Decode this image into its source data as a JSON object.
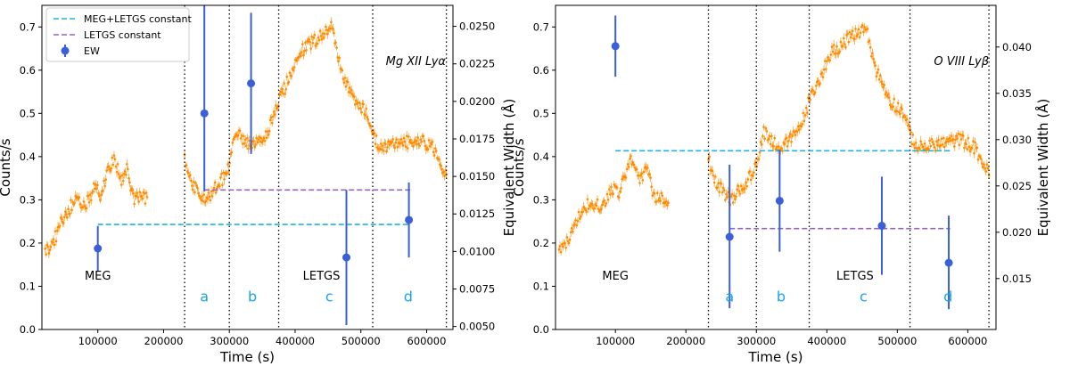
{
  "colors": {
    "lightcurve": "#ff8c00",
    "ew": "#3a5fd6",
    "combined_const": "#1cb5e0",
    "letgs_const": "#9467bd",
    "segment_label": "#1aa3e8"
  },
  "chart_data": [
    {
      "type": "scatter",
      "title": "",
      "annotation": "Mg XII Lyα",
      "xlabel": "Time (s)",
      "ylabel": "Counts/s",
      "y2label": "Equivalent Width (Å)",
      "xlim": [
        15000,
        640000
      ],
      "ylim": [
        0,
        0.75
      ],
      "y2lim": [
        0.0048,
        0.0264
      ],
      "xticks": [
        100000,
        200000,
        300000,
        400000,
        500000,
        600000
      ],
      "xtick_labels": [
        "100000",
        "200000",
        "300000",
        "400000",
        "500000",
        "600000"
      ],
      "yticks": [
        0.0,
        0.1,
        0.2,
        0.3,
        0.4,
        0.5,
        0.6,
        0.7
      ],
      "ytick_labels": [
        "0.0",
        "0.1",
        "0.2",
        "0.3",
        "0.4",
        "0.5",
        "0.6",
        "0.7"
      ],
      "y2ticks": [
        0.005,
        0.0075,
        0.01,
        0.0125,
        0.015,
        0.0175,
        0.02,
        0.0225,
        0.025
      ],
      "y2tick_labels": [
        "0.0050",
        "0.0075",
        "0.0100",
        "0.0125",
        "0.0150",
        "0.0175",
        "0.0200",
        "0.0225",
        "0.0250"
      ],
      "grid": false,
      "legend_position": "top-left",
      "legend": [
        "MEG+LETGS constant",
        "LETGS constant",
        "EW"
      ],
      "segment_boundaries": [
        232000,
        300000,
        375000,
        518000,
        630000
      ],
      "segment_labels": [
        {
          "text": "a",
          "x": 262000,
          "y": 0.065
        },
        {
          "text": "b",
          "x": 335000,
          "y": 0.065
        },
        {
          "text": "c",
          "x": 452000,
          "y": 0.065
        },
        {
          "text": "d",
          "x": 572000,
          "y": 0.065
        }
      ],
      "instrument_labels": [
        {
          "text": "MEG",
          "x": 100000,
          "y": 0.115
        },
        {
          "text": "LETGS",
          "x": 440000,
          "y": 0.115
        }
      ],
      "constants": [
        {
          "name": "MEG+LETGS constant",
          "value": 0.0118,
          "x_range": [
            100000,
            575000
          ]
        },
        {
          "name": "LETGS constant",
          "value": 0.0141,
          "x_range": [
            262000,
            575000
          ]
        }
      ],
      "ew_points": [
        {
          "x": 100000,
          "y": 0.0102,
          "err_low": 0.0015,
          "err_high": 0.0015
        },
        {
          "x": 262000,
          "y": 0.0192,
          "err_low": 0.0052,
          "err_high": 0.0072
        },
        {
          "x": 333000,
          "y": 0.0212,
          "err_low": 0.0047,
          "err_high": 0.0047
        },
        {
          "x": 478000,
          "y": 0.0096,
          "err_low": 0.0045,
          "err_high": 0.0045
        },
        {
          "x": 573000,
          "y": 0.0121,
          "err_low": 0.0025,
          "err_high": 0.0025
        }
      ],
      "lightcurve": [
        {
          "segment": "MEG",
          "x_start": 20000,
          "x_end": 175000,
          "knots_x": [
            20000,
            32000,
            48000,
            65000,
            80000,
            95000,
            105000,
            112000,
            125000,
            135000,
            145000,
            155000,
            165000,
            175000
          ],
          "knots_y": [
            0.18,
            0.2,
            0.26,
            0.3,
            0.28,
            0.33,
            0.31,
            0.35,
            0.4,
            0.34,
            0.37,
            0.3,
            0.31,
            0.3
          ]
        },
        {
          "segment": "LETGS",
          "x_start": 232000,
          "x_end": 630000,
          "knots_x": [
            232000,
            240000,
            255000,
            265000,
            280000,
            295000,
            300000,
            310000,
            320000,
            335000,
            350000,
            365000,
            375000,
            385000,
            395000,
            405000,
            455000,
            470000,
            490000,
            510000,
            518000,
            530000,
            560000,
            590000,
            610000,
            630000
          ],
          "knots_y": [
            0.4,
            0.35,
            0.31,
            0.3,
            0.33,
            0.36,
            0.38,
            0.46,
            0.44,
            0.42,
            0.44,
            0.48,
            0.53,
            0.56,
            0.6,
            0.64,
            0.7,
            0.6,
            0.53,
            0.5,
            0.45,
            0.42,
            0.43,
            0.44,
            0.42,
            0.36
          ]
        }
      ]
    },
    {
      "type": "scatter",
      "title": "",
      "annotation": "O VIII Lyβ",
      "xlabel": "Time (s)",
      "ylabel": "Counts/s",
      "y2label": "Equivalent Width (Å)",
      "xlim": [
        15000,
        640000
      ],
      "ylim": [
        0,
        0.75
      ],
      "y2lim": [
        0.0095,
        0.0445
      ],
      "xticks": [
        100000,
        200000,
        300000,
        400000,
        500000,
        600000
      ],
      "xtick_labels": [
        "100000",
        "200000",
        "300000",
        "400000",
        "500000",
        "600000"
      ],
      "yticks": [
        0.0,
        0.1,
        0.2,
        0.3,
        0.4,
        0.5,
        0.6,
        0.7
      ],
      "ytick_labels": [
        "0.0",
        "0.1",
        "0.2",
        "0.3",
        "0.4",
        "0.5",
        "0.6",
        "0.7"
      ],
      "y2ticks": [
        0.015,
        0.02,
        0.025,
        0.03,
        0.035,
        0.04
      ],
      "y2tick_labels": [
        "0.015",
        "0.020",
        "0.025",
        "0.030",
        "0.035",
        "0.040"
      ],
      "grid": false,
      "legend_position": "none",
      "legend": [],
      "segment_boundaries": [
        232000,
        300000,
        375000,
        518000,
        630000
      ],
      "segment_labels": [
        {
          "text": "a",
          "x": 262000,
          "y": 0.065
        },
        {
          "text": "b",
          "x": 335000,
          "y": 0.065
        },
        {
          "text": "c",
          "x": 452000,
          "y": 0.065
        },
        {
          "text": "d",
          "x": 572000,
          "y": 0.065
        }
      ],
      "instrument_labels": [
        {
          "text": "MEG",
          "x": 100000,
          "y": 0.115
        },
        {
          "text": "LETGS",
          "x": 440000,
          "y": 0.115
        }
      ],
      "constants": [
        {
          "name": "MEG+LETGS constant",
          "value": 0.0288,
          "x_range": [
            100000,
            575000
          ]
        },
        {
          "name": "LETGS constant",
          "value": 0.0204,
          "x_range": [
            262000,
            575000
          ]
        }
      ],
      "ew_points": [
        {
          "x": 100000,
          "y": 0.0401,
          "err_low": 0.0033,
          "err_high": 0.0033
        },
        {
          "x": 262000,
          "y": 0.0195,
          "err_low": 0.0077,
          "err_high": 0.0078
        },
        {
          "x": 333000,
          "y": 0.0234,
          "err_low": 0.0055,
          "err_high": 0.0055
        },
        {
          "x": 478000,
          "y": 0.0207,
          "err_low": 0.0053,
          "err_high": 0.0053
        },
        {
          "x": 573000,
          "y": 0.0167,
          "err_low": 0.005,
          "err_high": 0.0051
        }
      ],
      "lightcurve": [
        {
          "segment": "MEG",
          "x_start": 20000,
          "x_end": 175000,
          "knots_x": [
            20000,
            32000,
            48000,
            65000,
            80000,
            95000,
            105000,
            112000,
            125000,
            135000,
            145000,
            155000,
            165000,
            175000
          ],
          "knots_y": [
            0.18,
            0.2,
            0.26,
            0.3,
            0.28,
            0.33,
            0.31,
            0.35,
            0.4,
            0.34,
            0.37,
            0.3,
            0.31,
            0.3
          ]
        },
        {
          "segment": "LETGS",
          "x_start": 232000,
          "x_end": 630000,
          "knots_x": [
            232000,
            240000,
            255000,
            265000,
            280000,
            295000,
            300000,
            310000,
            320000,
            335000,
            350000,
            365000,
            375000,
            385000,
            395000,
            405000,
            455000,
            470000,
            490000,
            510000,
            518000,
            530000,
            560000,
            590000,
            610000,
            630000
          ],
          "knots_y": [
            0.4,
            0.35,
            0.31,
            0.3,
            0.33,
            0.36,
            0.38,
            0.46,
            0.44,
            0.42,
            0.44,
            0.48,
            0.53,
            0.56,
            0.6,
            0.64,
            0.7,
            0.6,
            0.53,
            0.5,
            0.45,
            0.42,
            0.43,
            0.44,
            0.42,
            0.36
          ]
        }
      ]
    }
  ]
}
